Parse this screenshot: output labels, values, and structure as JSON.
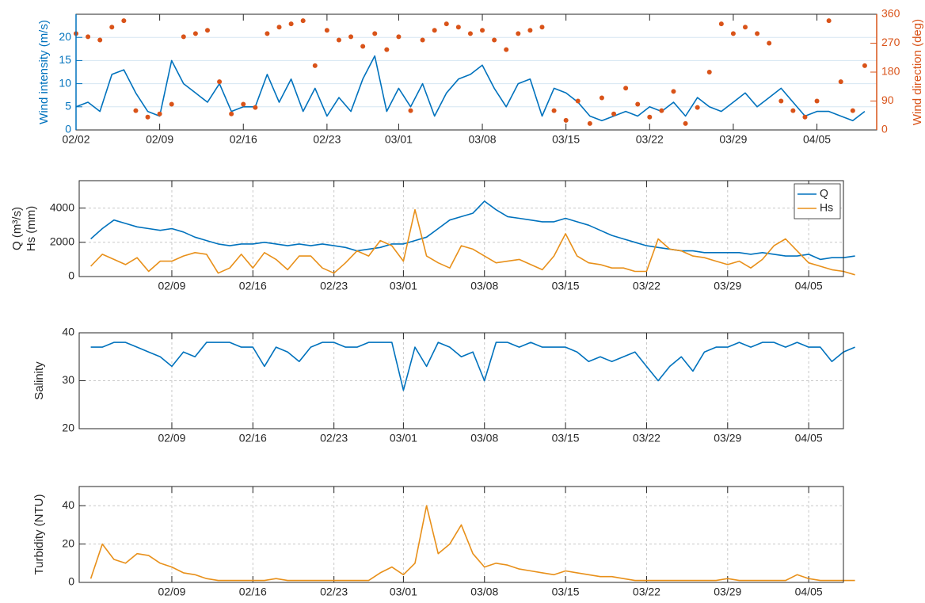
{
  "chart_data": [
    {
      "type": "line",
      "ylabel": "Wind intensity (m/s)",
      "y2label": "Wind direction (deg)",
      "x": [
        "02/02",
        "02/03",
        "02/04",
        "02/05",
        "02/06",
        "02/07",
        "02/08",
        "02/09",
        "02/10",
        "02/11",
        "02/12",
        "02/13",
        "02/14",
        "02/15",
        "02/16",
        "02/17",
        "02/18",
        "02/19",
        "02/20",
        "02/21",
        "02/22",
        "02/23",
        "02/24",
        "02/25",
        "02/26",
        "02/27",
        "02/28",
        "03/01",
        "03/02",
        "03/03",
        "03/04",
        "03/05",
        "03/06",
        "03/07",
        "03/08",
        "03/09",
        "03/10",
        "03/11",
        "03/12",
        "03/13",
        "03/14",
        "03/15",
        "03/16",
        "03/17",
        "03/18",
        "03/19",
        "03/20",
        "03/21",
        "03/22",
        "03/23",
        "03/24",
        "03/25",
        "03/26",
        "03/27",
        "03/28",
        "03/29",
        "03/30",
        "03/31",
        "04/01",
        "04/02",
        "04/03",
        "04/04",
        "04/05",
        "04/06",
        "04/07",
        "04/08",
        "04/09"
      ],
      "series": [
        {
          "color": "#0072bd",
          "type": "line",
          "values": [
            5,
            6,
            4,
            12,
            13,
            8,
            4,
            3,
            15,
            10,
            8,
            6,
            10,
            4,
            5,
            5,
            12,
            6,
            11,
            4,
            9,
            3,
            7,
            4,
            11,
            16,
            4,
            9,
            5,
            10,
            3,
            8,
            11,
            12,
            14,
            9,
            5,
            10,
            11,
            3,
            9,
            8,
            6,
            3,
            2,
            3,
            4,
            3,
            5,
            4,
            6,
            3,
            7,
            5,
            4,
            6,
            8,
            5,
            7,
            9,
            6,
            3,
            4,
            4,
            3,
            2,
            4
          ]
        },
        {
          "color": "#d95319",
          "type": "scatter",
          "axis": "y2",
          "values": [
            300,
            290,
            280,
            320,
            340,
            60,
            40,
            50,
            80,
            290,
            300,
            310,
            150,
            50,
            80,
            70,
            300,
            320,
            330,
            340,
            200,
            310,
            280,
            290,
            260,
            300,
            250,
            290,
            60,
            280,
            310,
            330,
            320,
            300,
            310,
            280,
            250,
            300,
            310,
            320,
            60,
            30,
            90,
            20,
            100,
            50,
            130,
            80,
            40,
            60,
            120,
            20,
            70,
            180,
            330,
            300,
            320,
            300,
            270,
            90,
            60,
            40,
            90,
            340,
            150,
            60,
            200
          ]
        }
      ],
      "xlim": [
        "02/02",
        "04/10"
      ],
      "xticks": [
        "02/02",
        "02/09",
        "02/16",
        "02/23",
        "03/01",
        "03/08",
        "03/15",
        "03/22",
        "03/29",
        "04/05"
      ],
      "ylim": [
        0,
        25
      ],
      "yticks": [
        0,
        5,
        10,
        15,
        20
      ],
      "y2lim": [
        0,
        360
      ],
      "y2ticks": [
        0,
        90,
        180,
        270,
        360
      ],
      "grid": "y"
    },
    {
      "type": "line",
      "ylabel": [
        "Q (m³/s)",
        "Hs (mm)"
      ],
      "x": [
        "02/02",
        "02/03",
        "02/04",
        "02/05",
        "02/06",
        "02/07",
        "02/08",
        "02/09",
        "02/10",
        "02/11",
        "02/12",
        "02/13",
        "02/14",
        "02/15",
        "02/16",
        "02/17",
        "02/18",
        "02/19",
        "02/20",
        "02/21",
        "02/22",
        "02/23",
        "02/24",
        "02/25",
        "02/26",
        "02/27",
        "02/28",
        "03/01",
        "03/02",
        "03/03",
        "03/04",
        "03/05",
        "03/06",
        "03/07",
        "03/08",
        "03/09",
        "03/10",
        "03/11",
        "03/12",
        "03/13",
        "03/14",
        "03/15",
        "03/16",
        "03/17",
        "03/18",
        "03/19",
        "03/20",
        "03/21",
        "03/22",
        "03/23",
        "03/24",
        "03/25",
        "03/26",
        "03/27",
        "03/28",
        "03/29",
        "03/30",
        "03/31",
        "04/01",
        "04/02",
        "04/03",
        "04/04",
        "04/05",
        "04/06",
        "04/07",
        "04/08",
        "04/09"
      ],
      "series": [
        {
          "name": "Q",
          "color": "#0072bd",
          "values": [
            2200,
            2800,
            3300,
            3100,
            2900,
            2800,
            2700,
            2800,
            2600,
            2300,
            2100,
            1900,
            1800,
            1900,
            1900,
            2000,
            1900,
            1800,
            1900,
            1800,
            1900,
            1800,
            1700,
            1500,
            1600,
            1700,
            1900,
            1900,
            2100,
            2300,
            2800,
            3300,
            3500,
            3700,
            4400,
            3900,
            3500,
            3400,
            3300,
            3200,
            3200,
            3400,
            3200,
            3000,
            2700,
            2400,
            2200,
            2000,
            1800,
            1700,
            1600,
            1500,
            1500,
            1400,
            1400,
            1400,
            1400,
            1300,
            1400,
            1300,
            1200,
            1200,
            1300,
            1000,
            1100,
            1100,
            1200
          ]
        },
        {
          "name": "Hs",
          "color": "#e8901a",
          "values": [
            600,
            1300,
            1000,
            700,
            1100,
            300,
            900,
            900,
            1200,
            1400,
            1300,
            200,
            500,
            1300,
            500,
            1400,
            1000,
            400,
            1200,
            1200,
            500,
            200,
            800,
            1500,
            1200,
            2100,
            1800,
            900,
            3900,
            1200,
            800,
            500,
            1800,
            1600,
            1200,
            800,
            900,
            1000,
            700,
            400,
            1200,
            2500,
            1200,
            800,
            700,
            500,
            500,
            300,
            300,
            2200,
            1600,
            1500,
            1200,
            1100,
            900,
            700,
            900,
            500,
            1000,
            1800,
            2200,
            1500,
            800,
            600,
            400,
            300,
            100
          ]
        }
      ],
      "xlim": [
        "02/01",
        "04/08"
      ],
      "xticks": [
        "02/09",
        "02/16",
        "02/23",
        "03/01",
        "03/08",
        "03/15",
        "03/22",
        "03/29",
        "04/05"
      ],
      "ylim": [
        0,
        5600
      ],
      "yticks": [
        0,
        2000,
        4000
      ],
      "grid": "xy",
      "legend": "top-right"
    },
    {
      "type": "line",
      "ylabel": "Salinity",
      "x": [
        "02/02",
        "02/03",
        "02/04",
        "02/05",
        "02/06",
        "02/07",
        "02/08",
        "02/09",
        "02/10",
        "02/11",
        "02/12",
        "02/13",
        "02/14",
        "02/15",
        "02/16",
        "02/17",
        "02/18",
        "02/19",
        "02/20",
        "02/21",
        "02/22",
        "02/23",
        "02/24",
        "02/25",
        "02/26",
        "02/27",
        "02/28",
        "03/01",
        "03/02",
        "03/03",
        "03/04",
        "03/05",
        "03/06",
        "03/07",
        "03/08",
        "03/09",
        "03/10",
        "03/11",
        "03/12",
        "03/13",
        "03/14",
        "03/15",
        "03/16",
        "03/17",
        "03/18",
        "03/19",
        "03/20",
        "03/21",
        "03/22",
        "03/23",
        "03/24",
        "03/25",
        "03/26",
        "03/27",
        "03/28",
        "03/29",
        "03/30",
        "03/31",
        "04/01",
        "04/02",
        "04/03",
        "04/04",
        "04/05",
        "04/06",
        "04/07",
        "04/08",
        "04/09"
      ],
      "series": [
        {
          "color": "#0072bd",
          "values": [
            37,
            37,
            38,
            38,
            37,
            36,
            35,
            33,
            36,
            35,
            38,
            38,
            38,
            37,
            37,
            33,
            37,
            36,
            34,
            37,
            38,
            38,
            37,
            37,
            38,
            38,
            38,
            28,
            37,
            33,
            38,
            37,
            35,
            36,
            30,
            38,
            38,
            37,
            38,
            37,
            37,
            37,
            36,
            34,
            35,
            34,
            35,
            36,
            33,
            30,
            33,
            35,
            32,
            36,
            37,
            37,
            38,
            37,
            38,
            38,
            37,
            38,
            37,
            37,
            34,
            36,
            37
          ]
        }
      ],
      "xlim": [
        "02/01",
        "04/08"
      ],
      "xticks": [
        "02/09",
        "02/16",
        "02/23",
        "03/01",
        "03/08",
        "03/15",
        "03/22",
        "03/29",
        "04/05"
      ],
      "ylim": [
        20,
        40
      ],
      "yticks": [
        20,
        30,
        40
      ],
      "grid": "xy"
    },
    {
      "type": "line",
      "ylabel": "Turbidity (NTU)",
      "x": [
        "02/02",
        "02/03",
        "02/04",
        "02/05",
        "02/06",
        "02/07",
        "02/08",
        "02/09",
        "02/10",
        "02/11",
        "02/12",
        "02/13",
        "02/14",
        "02/15",
        "02/16",
        "02/17",
        "02/18",
        "02/19",
        "02/20",
        "02/21",
        "02/22",
        "02/23",
        "02/24",
        "02/25",
        "02/26",
        "02/27",
        "02/28",
        "03/01",
        "03/02",
        "03/03",
        "03/04",
        "03/05",
        "03/06",
        "03/07",
        "03/08",
        "03/09",
        "03/10",
        "03/11",
        "03/12",
        "03/13",
        "03/14",
        "03/15",
        "03/16",
        "03/17",
        "03/18",
        "03/19",
        "03/20",
        "03/21",
        "03/22",
        "03/23",
        "03/24",
        "03/25",
        "03/26",
        "03/27",
        "03/28",
        "03/29",
        "03/30",
        "03/31",
        "04/01",
        "04/02",
        "04/03",
        "04/04",
        "04/05",
        "04/06",
        "04/07",
        "04/08",
        "04/09"
      ],
      "series": [
        {
          "color": "#e8901a",
          "values": [
            2,
            20,
            12,
            10,
            15,
            14,
            10,
            8,
            5,
            4,
            2,
            1,
            1,
            1,
            1,
            1,
            2,
            1,
            1,
            1,
            1,
            1,
            1,
            1,
            1,
            5,
            8,
            4,
            10,
            40,
            15,
            20,
            30,
            15,
            8,
            10,
            9,
            7,
            6,
            5,
            4,
            6,
            5,
            4,
            3,
            3,
            2,
            1,
            1,
            1,
            1,
            1,
            1,
            1,
            1,
            2,
            1,
            1,
            1,
            1,
            1,
            4,
            2,
            1,
            1,
            1,
            1
          ]
        }
      ],
      "xlim": [
        "02/01",
        "04/08"
      ],
      "xticks": [
        "02/09",
        "02/16",
        "02/23",
        "03/01",
        "03/08",
        "03/15",
        "03/22",
        "03/29",
        "04/05"
      ],
      "ylim": [
        0,
        50
      ],
      "yticks": [
        0,
        20,
        40
      ],
      "grid": "xy"
    }
  ]
}
